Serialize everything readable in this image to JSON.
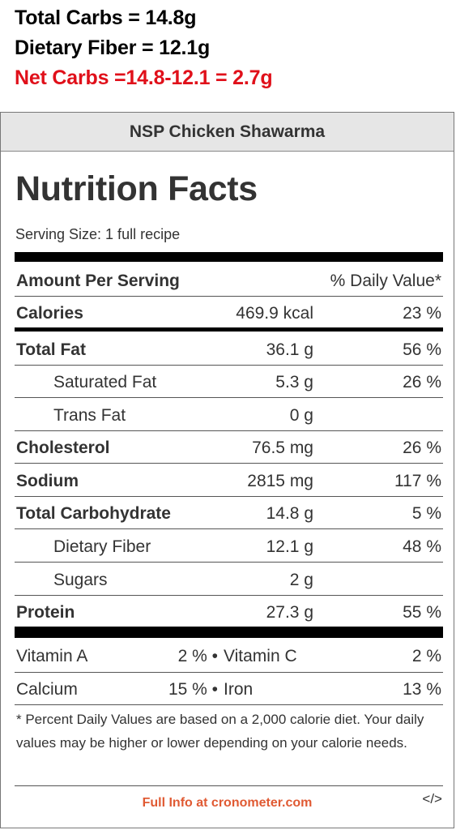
{
  "annotations": {
    "total_carbs": "Total Carbs = 14.8g",
    "dietary_fiber": "Dietary Fiber = 12.1g",
    "net_carbs": "Net Carbs =14.8-12.1 = 2.7g",
    "net_color": "#e0101a"
  },
  "label": {
    "recipe_name": "NSP Chicken Shawarma",
    "title": "Nutrition Facts",
    "serving_size": "Serving Size: 1 full recipe",
    "amount_header": "Amount Per Serving",
    "dv_header": "% Daily Value*",
    "calories": {
      "name": "Calories",
      "amount": "469.9 kcal",
      "dv": "23 %"
    },
    "rows": [
      {
        "name": "Total Fat",
        "amount": "36.1 g",
        "dv": "56 %"
      },
      {
        "name": "Saturated Fat",
        "amount": "5.3 g",
        "dv": "26 %"
      },
      {
        "name": "Trans Fat",
        "amount": "0 g",
        "dv": ""
      },
      {
        "name": "Cholesterol",
        "amount": "76.5 mg",
        "dv": "26 %"
      },
      {
        "name": "Sodium",
        "amount": "2815 mg",
        "dv": "117 %"
      },
      {
        "name": "Total Carbohydrate",
        "amount": "14.8 g",
        "dv": "5 %"
      },
      {
        "name": "Dietary Fiber",
        "amount": "12.1 g",
        "dv": "48 %"
      },
      {
        "name": "Sugars",
        "amount": "2 g",
        "dv": ""
      },
      {
        "name": "Protein",
        "amount": "27.3 g",
        "dv": "55 %"
      }
    ],
    "vitamins": [
      {
        "l1": "Vitamin A",
        "v1": "2 % •",
        "l2": "Vitamin C",
        "v2": "2 %"
      },
      {
        "l1": "Calcium",
        "v1": "15 % •",
        "l2": "Iron",
        "v2": "13 %"
      }
    ],
    "footnote": "* Percent Daily Values are based on a 2,000 calorie diet. Your daily values may be higher or lower depending on your calorie needs.",
    "full_info_link": "Full Info at cronometer.com",
    "embed_icon": "</>",
    "link_color": "#e05a33"
  }
}
